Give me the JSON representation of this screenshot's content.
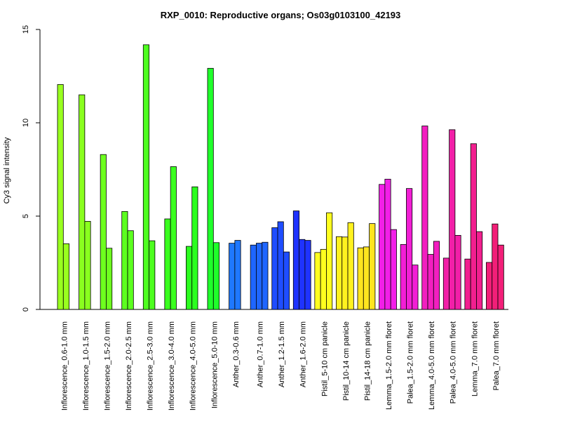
{
  "chart_data": {
    "type": "bar",
    "title": "RXP_0010: Reproductive organs; Os03g0103100_42193",
    "xlabel": "",
    "ylabel": "Cy3 signal intensity",
    "ylim": [
      0,
      15
    ],
    "yticks": [
      0,
      5,
      10,
      15
    ],
    "grid": false,
    "legend": "none",
    "groups": [
      {
        "label": "Inflorescence_0.6-1.0 mm",
        "color": "#99ff1f",
        "values": [
          12.05,
          3.52
        ]
      },
      {
        "label": "Inflorescence_1.0-1.5 mm",
        "color": "#8aff1f",
        "values": [
          11.5,
          4.72
        ]
      },
      {
        "label": "Inflorescence_1.5-2.0 mm",
        "color": "#6eff1f",
        "values": [
          8.3,
          3.28
        ]
      },
      {
        "label": "Inflorescence_2.0-2.5 mm",
        "color": "#5cff1f",
        "values": [
          5.25,
          4.22
        ]
      },
      {
        "label": "Inflorescence_2.5-3.0 mm",
        "color": "#4dff1f",
        "values": [
          14.18,
          3.68
        ]
      },
      {
        "label": "Inflorescence_3.0-4.0 mm",
        "color": "#3aff1f",
        "values": [
          4.85,
          7.65
        ]
      },
      {
        "label": "Inflorescence_4.0-5.0 mm",
        "color": "#2bff1f",
        "values": [
          3.38,
          6.57
        ]
      },
      {
        "label": "Inflorescence_5.0-10 mm",
        "color": "#1fff2b",
        "values": [
          12.92,
          3.58
        ]
      },
      {
        "label": "Anther_0.3-0.6 mm",
        "color": "#1f78ff",
        "values": [
          3.55,
          3.7
        ]
      },
      {
        "label": "Anther_0.7-1.0 mm",
        "color": "#1f66ff",
        "values": [
          3.45,
          3.55,
          3.6
        ]
      },
      {
        "label": "Anther_1.2-1.5 mm",
        "color": "#1f4dff",
        "values": [
          4.38,
          4.7,
          3.08
        ]
      },
      {
        "label": "Anther_1.6-2.0 mm",
        "color": "#1f33ff",
        "values": [
          5.28,
          3.75,
          3.7
        ]
      },
      {
        "label": "Pistil_5-10 cm panicle",
        "color": "#ffff1f",
        "values": [
          3.05,
          3.22,
          5.18
        ]
      },
      {
        "label": "Pistil_10-14 cm panicle",
        "color": "#fff21f",
        "values": [
          3.9,
          3.88,
          4.65
        ]
      },
      {
        "label": "Pistil_14-18 cm panicle",
        "color": "#ffe51f",
        "values": [
          3.3,
          3.35,
          4.6
        ]
      },
      {
        "label": "Lemma_1.5-2.0 mm floret",
        "color": "#f21fe8",
        "values": [
          6.7,
          6.98,
          4.28
        ]
      },
      {
        "label": "Palea_1.5-2.0 mm floret",
        "color": "#f21fd5",
        "values": [
          3.48,
          6.48,
          2.38
        ]
      },
      {
        "label": "Lemma_4.0-5.0 mm floret",
        "color": "#f21fc0",
        "values": [
          9.83,
          2.95,
          3.65
        ]
      },
      {
        "label": "Palea_4.0-5.0 mm floret",
        "color": "#f21fa8",
        "values": [
          2.75,
          9.63,
          3.97
        ]
      },
      {
        "label": "Lemma_7.0 mm floret",
        "color": "#f21f8f",
        "values": [
          2.7,
          8.88,
          4.17
        ]
      },
      {
        "label": "Palea_7.0 mm floret",
        "color": "#f21f78",
        "values": [
          2.52,
          4.58,
          3.45
        ]
      }
    ]
  }
}
